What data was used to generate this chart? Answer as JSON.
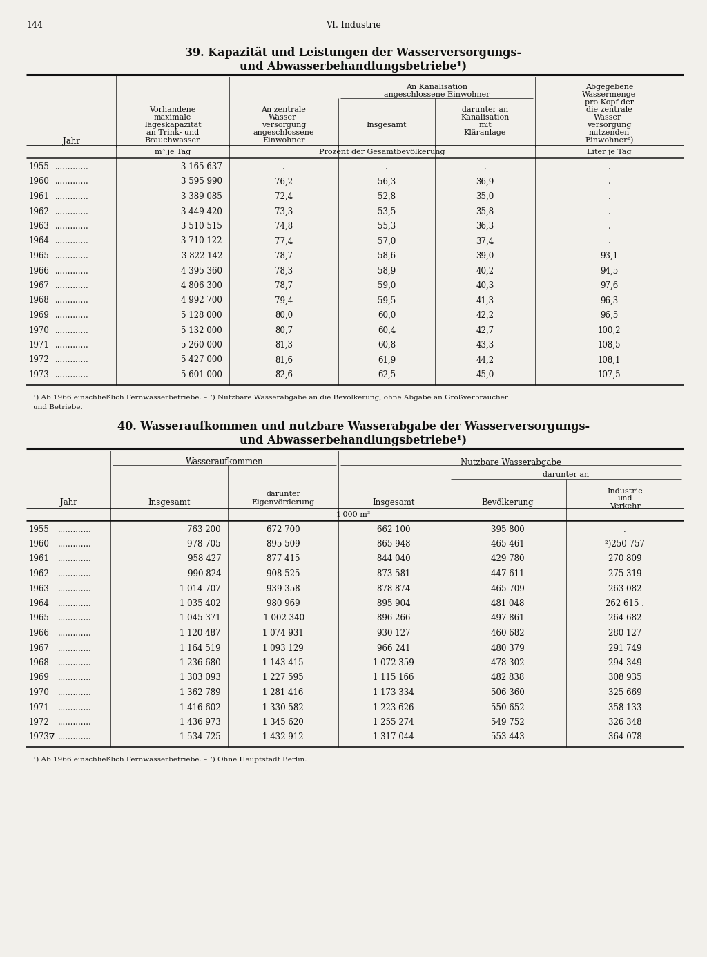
{
  "page_number": "144",
  "page_header": "VI. Industrie",
  "table1": {
    "title_line1": "39. Kapazität und Leistungen der Wasserversorgungs-",
    "title_line2": "und Abwasserbehandlungsbetriebe¹)",
    "rows": [
      [
        "1955",
        "3 165 637",
        ".",
        ".",
        ".",
        "."
      ],
      [
        "1960",
        "3 595 990",
        "76,2",
        "56,3",
        "36,9",
        "."
      ],
      [
        "1961",
        "3 389 085",
        "72,4",
        "52,8",
        "35,0",
        "."
      ],
      [
        "1962",
        "3 449 420",
        "73,3",
        "53,5",
        "35,8",
        "."
      ],
      [
        "1963",
        "3 510 515",
        "74,8",
        "55,3",
        "36,3",
        "."
      ],
      [
        "1964",
        "3 710 122",
        "77,4",
        "57,0",
        "37,4",
        "."
      ],
      [
        "1965",
        "3 822 142",
        "78,7",
        "58,6",
        "39,0",
        "93,1"
      ],
      [
        "1966",
        "4 395 360",
        "78,3",
        "58,9",
        "40,2",
        "94,5"
      ],
      [
        "1967",
        "4 806 300",
        "78,7",
        "59,0",
        "40,3",
        "97,6"
      ],
      [
        "1968",
        "4 992 700",
        "79,4",
        "59,5",
        "41,3",
        "96,3"
      ],
      [
        "1969",
        "5 128 000",
        "80,0",
        "60,0",
        "42,2",
        "96,5"
      ],
      [
        "1970",
        "5 132 000",
        "80,7",
        "60,4",
        "42,7",
        "100,2"
      ],
      [
        "1971",
        "5 260 000",
        "81,3",
        "60,8",
        "43,3",
        "108,5"
      ],
      [
        "1972",
        "5 427 000",
        "81,6",
        "61,9",
        "44,2",
        "108,1"
      ],
      [
        "1973",
        "5 601 000",
        "82,6",
        "62,5",
        "45,0",
        "107,5"
      ]
    ],
    "footnote1": "¹) Ab 1966 einschließlich Fernwasserbetriebe. – ²) Nutzbare Wasserabgabe an die Bevölkerung, ohne Abgabe an Großverbraucher",
    "footnote2": "und Betriebe."
  },
  "table2": {
    "title_line1": "40. Wasseraufkommen und nutzbare Wasserabgabe der Wasserversorgungs-",
    "title_line2": "und Abwasserbehandlungsbetriebe¹)",
    "rows": [
      [
        "1955",
        "763 200",
        "672 700",
        "662 100",
        "395 800",
        "."
      ],
      [
        "1960",
        "978 705",
        "895 509",
        "865 948",
        "465 461",
        "²)250 757"
      ],
      [
        "1961",
        "958 427",
        "877 415",
        "844 040",
        "429 780",
        "270 809"
      ],
      [
        "1962",
        "990 824",
        "908 525",
        "873 581",
        "447 611",
        "275 319"
      ],
      [
        "1963",
        "1 014 707",
        "939 358",
        "878 874",
        "465 709",
        "263 082"
      ],
      [
        "1964",
        "1 035 402",
        "980 969",
        "895 904",
        "481 048",
        "262 615 ."
      ],
      [
        "1965",
        "1 045 371",
        " 1 002 340",
        "896 266",
        "497 861",
        "264 682"
      ],
      [
        "1966",
        "1 120 487",
        "1 074 931",
        "930 127",
        "460 682",
        "280 127"
      ],
      [
        "1967",
        "1 164 519",
        "1 093 129",
        "966 241",
        "480 379",
        "291 749"
      ],
      [
        "1968",
        "1 236 680",
        "1 143 415",
        "1 072 359",
        "478 302",
        "294 349"
      ],
      [
        "1969",
        "1 303 093",
        "1 227 595",
        "1 115 166",
        "482 838",
        "308 935"
      ],
      [
        "1970",
        "1 362 789",
        "1 281 416",
        "1 173 334",
        "506 360",
        "325 669"
      ],
      [
        "1971",
        "1 416 602",
        "1 330 582",
        "1 223 626",
        "550 652",
        "358 133"
      ],
      [
        "1972",
        "1 436 973",
        "1 345 620",
        "1 255 274",
        "549 752",
        "326 348"
      ],
      [
        "1973∇",
        "1 534 725",
        "1 432 912",
        "1 317 044",
        "553 443",
        "364 078"
      ]
    ],
    "footnote1": "¹) Ab 1966 einschließlich Fernwasserbetriebe. – ²) Ohne Hauptstadt Berlin."
  },
  "bg_color": "#f2f0eb",
  "text_color": "#111111",
  "line_color": "#111111"
}
